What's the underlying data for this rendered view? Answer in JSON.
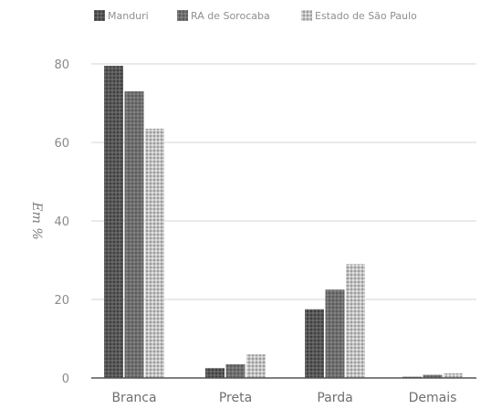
{
  "chart_data": {
    "type": "bar",
    "categories": [
      "Branca",
      "Preta",
      "Parda",
      "Demais"
    ],
    "series": [
      {
        "name": "Manduri",
        "values": [
          79.5,
          2.5,
          17.5,
          0.3
        ],
        "color": "#5a5a5a",
        "pattern": "dense-dark"
      },
      {
        "name": "RA de Sorocaba",
        "values": [
          73,
          3.5,
          22.5,
          0.8
        ],
        "color": "#6e6e6e",
        "pattern": "medium-dark"
      },
      {
        "name": "Estado de São Paulo",
        "values": [
          63.5,
          6,
          29,
          1.2
        ],
        "color": "#b5b5b5",
        "pattern": "light-checker"
      }
    ],
    "title": "",
    "xlabel": "",
    "ylabel": "Em %",
    "ylim": [
      0,
      80
    ],
    "yticks": [
      "0",
      "20",
      "40",
      "60",
      "80"
    ],
    "grid": true,
    "legend_position": "top"
  }
}
